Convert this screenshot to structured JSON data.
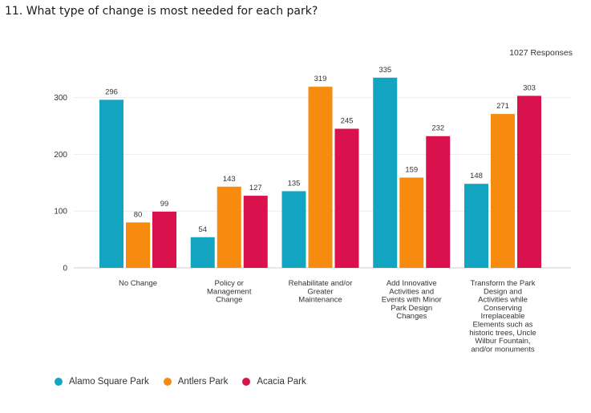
{
  "question": {
    "title": "11. What type of change is most needed for each park?"
  },
  "chart_data": {
    "type": "bar",
    "title": "",
    "xlabel": "",
    "ylabel": "",
    "responses_label": "1027 Responses",
    "ylim": [
      0,
      350
    ],
    "yticks": [
      0,
      100,
      200,
      300
    ],
    "grid": true,
    "legend_position": "bottom-left",
    "categories": [
      "No Change",
      "Policy or Management Change",
      "Rehabilitate and/or Greater Maintenance",
      "Add Innovative Activities and Events with Minor Park Design Changes",
      "Transform the Park Design and Activities while Conserving Irreplaceable Elements such as historic trees, Uncle Wilbur Fountain, and/or monuments"
    ],
    "category_label_lines": [
      [
        "No Change"
      ],
      [
        "Policy or",
        "Management",
        "Change"
      ],
      [
        "Rehabilitate and/or",
        "Greater",
        "Maintenance"
      ],
      [
        "Add Innovative",
        "Activities and",
        "Events with Minor",
        "Park Design",
        "Changes"
      ],
      [
        "Transform the Park",
        "Design and",
        "Activities while",
        "Conserving",
        "Irreplaceable",
        "Elements such as",
        "historic trees, Uncle",
        "Wilbur Fountain,",
        "and/or monuments"
      ]
    ],
    "series": [
      {
        "name": "Alamo Square Park",
        "color": "#12a4c0",
        "values": [
          296,
          54,
          135,
          335,
          148
        ]
      },
      {
        "name": "Antlers Park",
        "color": "#f68b0f",
        "values": [
          80,
          143,
          319,
          159,
          271
        ]
      },
      {
        "name": "Acacia Park",
        "color": "#d9124e",
        "values": [
          99,
          127,
          245,
          232,
          303
        ]
      }
    ]
  }
}
